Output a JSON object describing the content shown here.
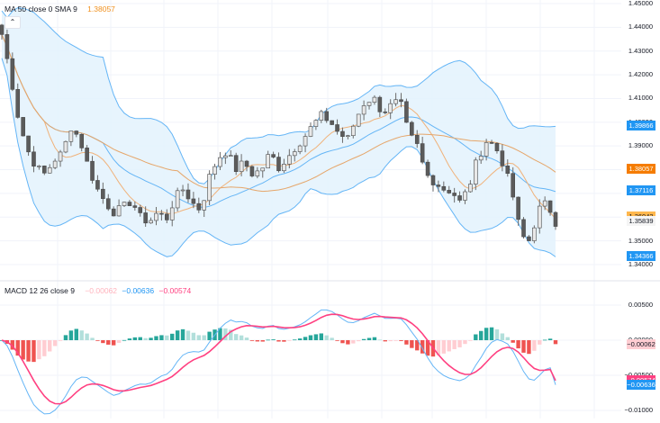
{
  "main_pane": {
    "legend": {
      "name": "MA 50 close 0 SMA 9",
      "value": "1.38057",
      "value_color": "#f0901e"
    },
    "collapse_icon": "chevron-up-icon",
    "price_axis_ticks": [
      "1.45000",
      "1.44000",
      "1.43000",
      "1.42000",
      "1.41000",
      "1.40000",
      "1.39000",
      "1.38000",
      "1.37000",
      "1.36000",
      "1.35000",
      "1.34000"
    ],
    "price_tags": [
      {
        "label": "1.39866",
        "value": 1.39866,
        "bg": "#2196f3",
        "fg": "#ffffff"
      },
      {
        "label": "1.38057",
        "value": 1.38057,
        "bg": "#f57c00",
        "fg": "#ffffff"
      },
      {
        "label": "1.37116",
        "value": 1.37116,
        "bg": "#2196f3",
        "fg": "#ffffff"
      },
      {
        "label": "1.36043",
        "value": 1.36043,
        "bg": "#ffb74d",
        "fg": "#131722"
      },
      {
        "label": "1.35839",
        "value": 1.35839,
        "bg": "#f5f5f5",
        "fg": "#131722"
      },
      {
        "label": "1.34366",
        "value": 1.34366,
        "bg": "#2196f3",
        "fg": "#ffffff"
      }
    ]
  },
  "macd_pane": {
    "legend": {
      "name": "MACD 12 26 close 9",
      "histogram": "−0.00062",
      "macd": "−0.00636",
      "signal": "−0.00574",
      "histogram_color": "#ffcdd2",
      "macd_color": "#2196f3",
      "signal_color": "#ff4081"
    },
    "axis_ticks": [
      "0.00500",
      "0.00000",
      "−0.00500",
      "−0.01000"
    ],
    "tags": [
      {
        "label": "−0.00062",
        "value": -0.00062,
        "bg": "#ffcdd2",
        "fg": "#131722"
      },
      {
        "label": "−0.00574",
        "value": -0.00574,
        "bg": "#ff4081",
        "fg": "#ffffff"
      },
      {
        "label": "−0.00636",
        "value": -0.00636,
        "bg": "#2196f3",
        "fg": "#ffffff"
      }
    ]
  },
  "colors": {
    "bb_band": "#64b5f6",
    "bb_fill": "#e3f2fd",
    "ma_sma": "#f0b27a",
    "ma_slow": "#e6a66a",
    "candle_up": "#d9d9d9",
    "candle_down": "#5d5d5d",
    "hist_up_strong": "#26a69a",
    "hist_up_weak": "#b2dfdb",
    "hist_down_strong": "#ef5350",
    "hist_down_weak": "#ffcdd2",
    "grid": "#f0f3fa"
  },
  "chart_data": [
    {
      "type": "candlestick",
      "title": "MA 50 close 0 SMA 9",
      "overlays": [
        "Bollinger Bands",
        "MA 50 (SMA 9 smoothing)",
        "Moving average"
      ],
      "ylim": [
        1.34,
        1.45
      ],
      "y_ticks": [
        1.34,
        1.35,
        1.36,
        1.37,
        1.38,
        1.39,
        1.4,
        1.41,
        1.42,
        1.43,
        1.44,
        1.45
      ],
      "last_values": {
        "ma": 1.38057,
        "bb_upper": 1.39866,
        "bb_basis": 1.37116,
        "bb_lower": 1.34366,
        "close": 1.35839,
        "sma": 1.36043
      },
      "close_path_approx": [
        1.437,
        1.42,
        1.4,
        1.388,
        1.381,
        1.378,
        1.384,
        1.387,
        1.398,
        1.393,
        1.381,
        1.372,
        1.366,
        1.362,
        1.364,
        1.367,
        1.36,
        1.358,
        1.362,
        1.359,
        1.368,
        1.372,
        1.366,
        1.363,
        1.377,
        1.385,
        1.388,
        1.38,
        1.383,
        1.378,
        1.38,
        1.387,
        1.381,
        1.385,
        1.39,
        1.394,
        1.399,
        1.403,
        1.4,
        1.395,
        1.393,
        1.402,
        1.409,
        1.41,
        1.404,
        1.407,
        1.409,
        1.395,
        1.39,
        1.378,
        1.375,
        1.372,
        1.371,
        1.366,
        1.373,
        1.385,
        1.392,
        1.39,
        1.382,
        1.37,
        1.352,
        1.35,
        1.363,
        1.366,
        1.358
      ]
    },
    {
      "type": "bar+line",
      "title": "MACD 12 26 close 9",
      "series": [
        {
          "name": "Histogram",
          "last": -0.00062
        },
        {
          "name": "MACD",
          "last": -0.00636
        },
        {
          "name": "Signal",
          "last": -0.00574
        }
      ],
      "ylim": [
        -0.0105,
        0.0065
      ],
      "y_ticks": [
        0.005,
        0.0,
        -0.005,
        -0.01
      ]
    }
  ]
}
